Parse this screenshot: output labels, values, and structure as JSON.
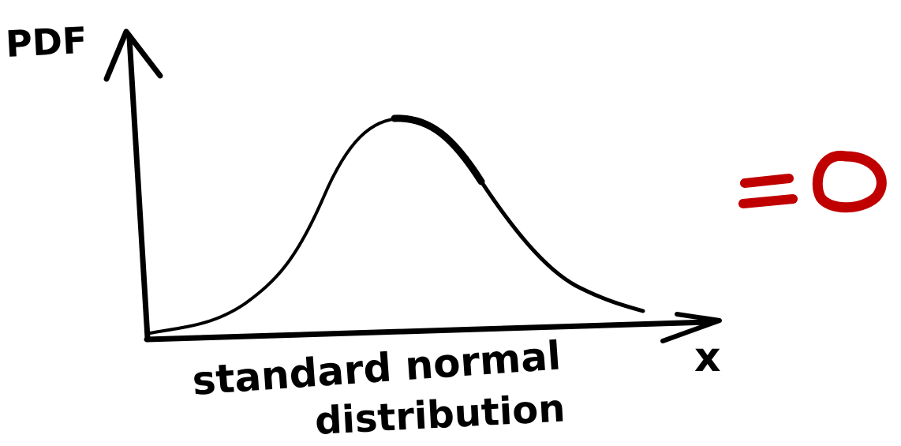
{
  "diagram": {
    "y_axis_label": "PDF",
    "x_axis_label": "x",
    "caption_line1": "standard normal",
    "caption_line2": "distribution",
    "result_text": "=0",
    "colors": {
      "ink": "#000000",
      "result": "#c00000"
    },
    "curve": "bell-shaped PDF curve"
  }
}
